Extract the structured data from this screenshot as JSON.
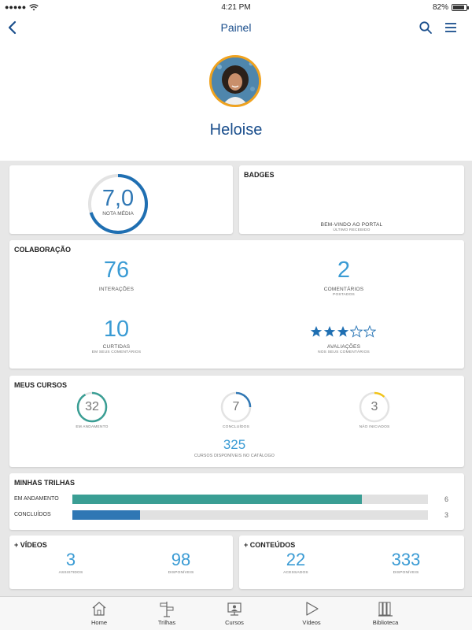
{
  "status_bar": {
    "time": "4:21 PM",
    "battery": "82%",
    "battery_level": 0.82
  },
  "nav": {
    "title": "Painel",
    "back_icon": "chevron-left-icon",
    "search_icon": "search-icon",
    "menu_icon": "hamburger-menu-icon"
  },
  "profile": {
    "name": "Heloise"
  },
  "nota": {
    "value": "7,0",
    "label": "NOTA MÉDIA",
    "fraction": 0.7
  },
  "badges": {
    "title": "BADGES",
    "badge_name": "BEM-VINDO AO PORTAL",
    "badge_sub": "ÚLTIMO RECEBIDO"
  },
  "colaboracao": {
    "title": "COLABORAÇÃO",
    "interacoes": {
      "value": "76",
      "label": "INTERAÇÕES"
    },
    "comentarios": {
      "value": "2",
      "label": "COMENTÁRIOS",
      "sub": "POSTADOS"
    },
    "curtidas": {
      "value": "10",
      "label": "CURTIDAS",
      "sub": "EM SEUS COMENTÁRIOS"
    },
    "avaliacoes": {
      "label": "AVALIAÇÕES",
      "sub": "NOS SEUS COMENTÁRIOS",
      "stars": 3,
      "max_stars": 5
    }
  },
  "meus_cursos": {
    "title": "MEUS CURSOS",
    "em_andamento": {
      "value": "32",
      "label": "EM ANDAMENTO",
      "color": "#3a9e94",
      "fraction": 0.92
    },
    "concluidos": {
      "value": "7",
      "label": "CONCLUÍDOS",
      "color": "#2f77b4",
      "fraction": 0.25
    },
    "nao_iniciados": {
      "value": "3",
      "label": "NÃO INICIADOS",
      "color": "#f2c417",
      "fraction": 0.12
    },
    "disponiveis": {
      "value": "325",
      "label": "CURSOS DISPONÍVEIS NO CATÁLOGO"
    }
  },
  "minhas_trilhas": {
    "title": "MINHAS TRILHAS",
    "em_andamento": {
      "label": "EM ANDAMENTO",
      "count": "6",
      "fraction": 0.815,
      "color": "#3a9e94"
    },
    "concluidos": {
      "label": "CONCLUÍDOS",
      "count": "3",
      "fraction": 0.19,
      "color": "#2f77b4"
    }
  },
  "videos": {
    "title": "+ VÍDEOS",
    "assistidos": {
      "value": "3",
      "label": "ASSISTIDOS"
    },
    "disponiveis": {
      "value": "98",
      "label": "DISPONÍVEIS"
    }
  },
  "conteudos": {
    "title": "+ CONTEÚDOS",
    "acessados": {
      "value": "22",
      "label": "ACESSADOS"
    },
    "disponiveis": {
      "value": "333",
      "label": "DISPONÍVEIS"
    }
  },
  "tabs": [
    {
      "label": "Home",
      "icon": "home-icon"
    },
    {
      "label": "Trilhas",
      "icon": "trail-sign-icon"
    },
    {
      "label": "Cursos",
      "icon": "course-monitor-icon"
    },
    {
      "label": "Vídeos",
      "icon": "play-icon"
    },
    {
      "label": "Biblioteca",
      "icon": "library-books-icon"
    }
  ],
  "colors": {
    "accent_blue": "#1a4e8c",
    "number_blue": "#3a9bd4",
    "teal": "#3a9e94",
    "yellow": "#f2c417",
    "avatar_ring": "#f0a21e"
  }
}
